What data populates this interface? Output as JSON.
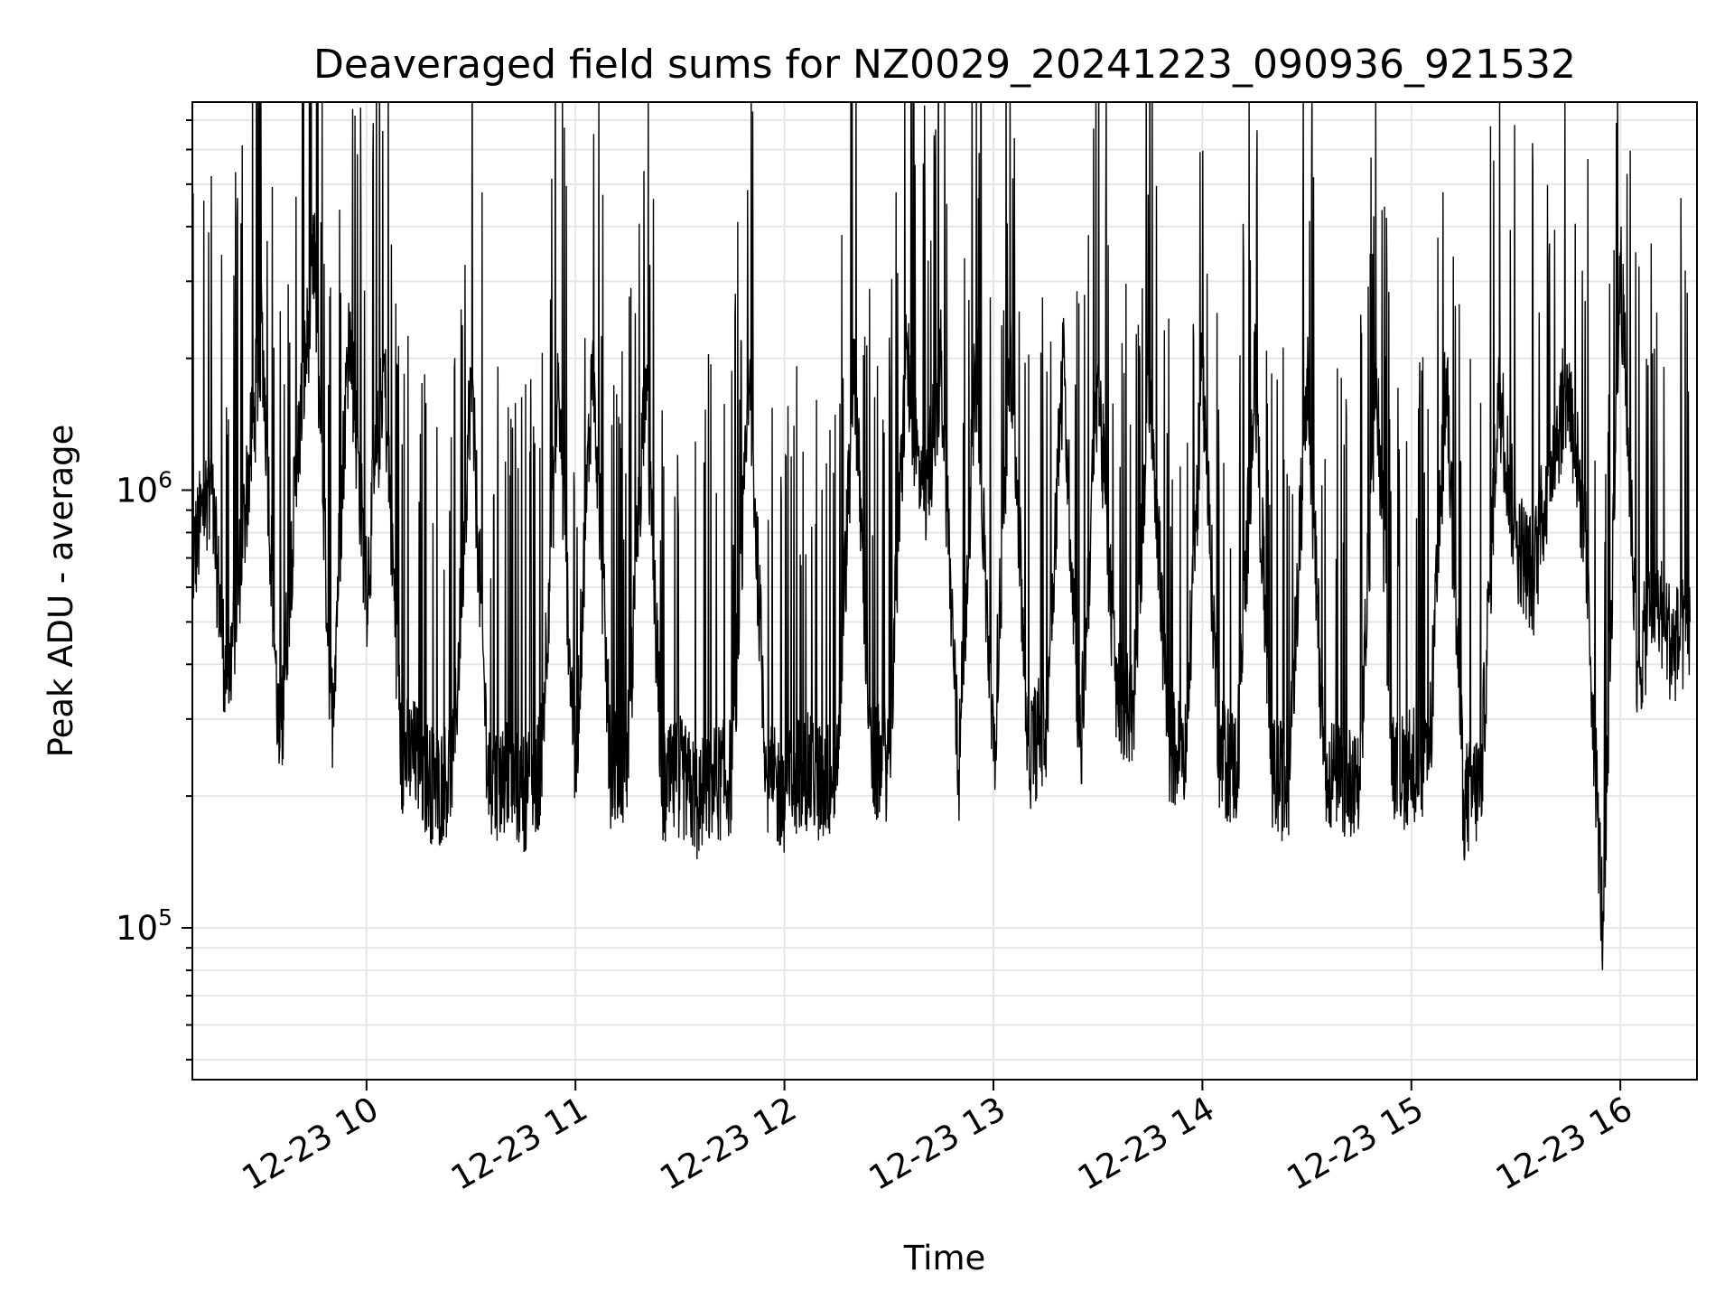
{
  "chart_data": {
    "type": "line",
    "title": "Deaveraged field sums for NZ0029_20241223_090936_921532",
    "xlabel": "Time",
    "ylabel": "Peak ADU - average",
    "yscale": "log",
    "grid": true,
    "line_color": "#000000",
    "grid_color": "#e6e6e6",
    "xlim": [
      "2024-12-23 09:10",
      "2024-12-23 16:22"
    ],
    "ylim": [
      45000,
      7700000
    ],
    "x_ticks": [
      {
        "value": "2024-12-23 10:00",
        "label": "12-23 10"
      },
      {
        "value": "2024-12-23 11:00",
        "label": "12-23 11"
      },
      {
        "value": "2024-12-23 12:00",
        "label": "12-23 12"
      },
      {
        "value": "2024-12-23 13:00",
        "label": "12-23 13"
      },
      {
        "value": "2024-12-23 14:00",
        "label": "12-23 14"
      },
      {
        "value": "2024-12-23 15:00",
        "label": "12-23 15"
      },
      {
        "value": "2024-12-23 16:00",
        "label": "12-23 16"
      }
    ],
    "y_ticks": [
      {
        "value": 100000,
        "base": "10",
        "exp": "5"
      },
      {
        "value": 1000000,
        "base": "10",
        "exp": "6"
      }
    ],
    "series": [
      {
        "x": [
          "2024-12-23 09:10",
          "2024-12-23 09:15",
          "2024-12-23 09:20",
          "2024-12-23 09:25",
          "2024-12-23 09:30",
          "2024-12-23 09:35",
          "2024-12-23 09:40",
          "2024-12-23 09:45",
          "2024-12-23 09:50",
          "2024-12-23 09:55",
          "2024-12-23 10:00",
          "2024-12-23 10:05",
          "2024-12-23 10:10",
          "2024-12-23 10:15",
          "2024-12-23 10:20",
          "2024-12-23 10:25",
          "2024-12-23 10:30",
          "2024-12-23 10:35",
          "2024-12-23 10:40",
          "2024-12-23 10:45",
          "2024-12-23 10:50",
          "2024-12-23 10:55",
          "2024-12-23 11:00",
          "2024-12-23 11:05",
          "2024-12-23 11:10",
          "2024-12-23 11:15",
          "2024-12-23 11:20",
          "2024-12-23 11:25",
          "2024-12-23 11:30",
          "2024-12-23 11:35",
          "2024-12-23 11:40",
          "2024-12-23 11:45",
          "2024-12-23 11:50",
          "2024-12-23 11:55",
          "2024-12-23 12:00",
          "2024-12-23 12:05",
          "2024-12-23 12:10",
          "2024-12-23 12:15",
          "2024-12-23 12:20",
          "2024-12-23 12:25",
          "2024-12-23 12:30",
          "2024-12-23 12:35",
          "2024-12-23 12:40",
          "2024-12-23 12:45",
          "2024-12-23 12:50",
          "2024-12-23 12:55",
          "2024-12-23 13:00",
          "2024-12-23 13:05",
          "2024-12-23 13:10",
          "2024-12-23 13:15",
          "2024-12-23 13:20",
          "2024-12-23 13:25",
          "2024-12-23 13:30",
          "2024-12-23 13:35",
          "2024-12-23 13:40",
          "2024-12-23 13:45",
          "2024-12-23 13:50",
          "2024-12-23 13:55",
          "2024-12-23 14:00",
          "2024-12-23 14:05",
          "2024-12-23 14:10",
          "2024-12-23 14:15",
          "2024-12-23 14:20",
          "2024-12-23 14:25",
          "2024-12-23 14:30",
          "2024-12-23 14:35",
          "2024-12-23 14:40",
          "2024-12-23 14:45",
          "2024-12-23 14:50",
          "2024-12-23 14:55",
          "2024-12-23 15:00",
          "2024-12-23 15:05",
          "2024-12-23 15:10",
          "2024-12-23 15:15",
          "2024-12-23 15:20",
          "2024-12-23 15:25",
          "2024-12-23 15:30",
          "2024-12-23 15:35",
          "2024-12-23 15:40",
          "2024-12-23 15:45",
          "2024-12-23 15:50",
          "2024-12-23 15:55",
          "2024-12-23 16:00",
          "2024-12-23 16:05",
          "2024-12-23 16:10",
          "2024-12-23 16:15",
          "2024-12-23 16:20"
        ],
        "y": [
          700000,
          1100000,
          350000,
          900000,
          2400000,
          250000,
          1200000,
          3500000,
          300000,
          2500000,
          600000,
          2000000,
          260000,
          250000,
          210000,
          240000,
          1900000,
          220000,
          230000,
          210000,
          240000,
          1800000,
          230000,
          2200000,
          240000,
          250000,
          1900000,
          210000,
          230000,
          200000,
          220000,
          230000,
          1800000,
          220000,
          210000,
          240000,
          220000,
          230000,
          2000000,
          240000,
          250000,
          2100000,
          900000,
          2000000,
          230000,
          2100000,
          240000,
          2200000,
          260000,
          300000,
          2000000,
          260000,
          1900000,
          380000,
          310000,
          2000000,
          280000,
          240000,
          1900000,
          250000,
          240000,
          1900000,
          230000,
          220000,
          1900000,
          240000,
          220000,
          210000,
          1900000,
          220000,
          250000,
          230000,
          1900000,
          200000,
          220000,
          1800000,
          800000,
          650000,
          1200000,
          1800000,
          800000,
          100000,
          3500000,
          400000,
          600000,
          450000,
          500000
        ]
      }
    ]
  }
}
